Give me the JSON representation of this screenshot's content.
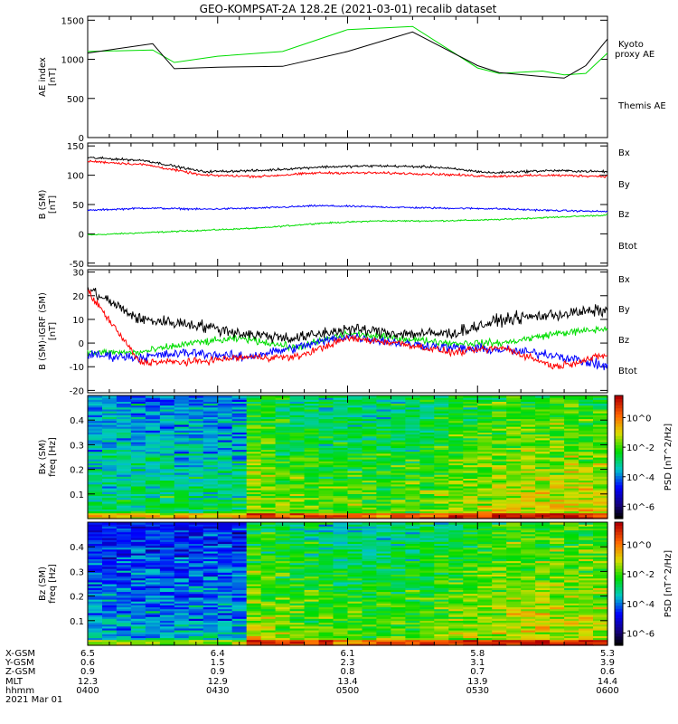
{
  "title": "GEO-KOMPSAT-2A 128.2E (2021-03-01) recalib dataset",
  "colors": {
    "kyoto": "#00dd00",
    "themis": "#000000",
    "bx": "#0000ff",
    "by": "#00dd00",
    "bz": "#ff0000",
    "btot": "#000000"
  },
  "chart_data": [
    {
      "type": "line",
      "panel": "ae",
      "ylabel": "AE index [nT]",
      "ylim": [
        0,
        1550
      ],
      "yticks": [
        0,
        500,
        1000,
        1500
      ],
      "x_minutes": [
        0,
        15,
        20,
        30,
        45,
        60,
        75,
        90,
        95,
        105,
        110,
        115,
        120
      ],
      "series": [
        {
          "name": "Kyoto proxy AE",
          "color": "#00dd00",
          "values": [
            1100,
            1120,
            960,
            1040,
            1100,
            1380,
            1420,
            890,
            820,
            850,
            800,
            820,
            1080
          ]
        },
        {
          "name": "Themis AE",
          "color": "#000000",
          "values": [
            1080,
            1200,
            880,
            900,
            910,
            1100,
            1350,
            920,
            830,
            780,
            760,
            920,
            1260
          ]
        }
      ],
      "legend": [
        "Kyoto",
        "proxy AE",
        "Themis AE"
      ]
    },
    {
      "type": "line",
      "panel": "b_sm",
      "ylabel": "B (SM) [nT]",
      "ylim": [
        -55,
        155
      ],
      "yticks": [
        -50,
        0,
        50,
        100,
        150
      ],
      "series": [
        {
          "name": "Bx",
          "color": "#0000ff",
          "values": [
            40,
            44,
            42,
            44,
            48,
            46,
            44,
            43,
            40,
            38
          ]
        },
        {
          "name": "By",
          "color": "#00dd00",
          "values": [
            -2,
            2,
            6,
            10,
            18,
            22,
            22,
            24,
            28,
            32
          ]
        },
        {
          "name": "Bz",
          "color": "#ff0000",
          "values": [
            124,
            118,
            100,
            98,
            104,
            104,
            102,
            98,
            100,
            98
          ]
        },
        {
          "name": "Btot",
          "color": "#000000",
          "values": [
            130,
            125,
            106,
            108,
            114,
            116,
            114,
            104,
            108,
            106
          ]
        }
      ]
    },
    {
      "type": "line",
      "panel": "b_igrf",
      "ylabel": "B (SM)-IGRF (SM) [nT]",
      "ylim": [
        -21,
        31
      ],
      "yticks": [
        -20,
        -10,
        0,
        10,
        20,
        30
      ],
      "series": [
        {
          "name": "Bx",
          "color": "#0000ff",
          "values": [
            -5,
            -6,
            -4,
            -6,
            -2,
            3,
            0,
            -2,
            -3,
            -5,
            -10
          ]
        },
        {
          "name": "By",
          "color": "#00dd00",
          "values": [
            -4,
            -4,
            0,
            2,
            -2,
            4,
            2,
            0,
            0,
            4,
            6
          ]
        },
        {
          "name": "Bz",
          "color": "#ff0000",
          "values": [
            22,
            -8,
            -8,
            -6,
            -6,
            2,
            0,
            -4,
            -2,
            -10,
            -5
          ]
        },
        {
          "name": "Btot",
          "color": "#000000",
          "values": [
            23,
            10,
            8,
            4,
            2,
            6,
            4,
            4,
            10,
            12,
            14
          ]
        }
      ]
    },
    {
      "type": "heatmap",
      "panel": "bx_psd",
      "ylabel": "Bx (SM) freq [Hz]",
      "ylim": [
        0,
        0.5
      ],
      "yticks": [
        0.1,
        0.2,
        0.3,
        0.4
      ],
      "colorbar": {
        "label": "PSD [nT^2/Hz]",
        "ticks": [
          "10^0",
          "10^-2",
          "10^-4",
          "10^-6"
        ]
      }
    },
    {
      "type": "heatmap",
      "panel": "bz_psd",
      "ylabel": "Bz (SM) freq [Hz]",
      "ylim": [
        0,
        0.5
      ],
      "yticks": [
        0.1,
        0.2,
        0.3,
        0.4
      ],
      "colorbar": {
        "label": "PSD [nT^2/Hz]",
        "ticks": [
          "10^0",
          "10^-2",
          "10^-4",
          "10^-6"
        ]
      }
    }
  ],
  "footer": {
    "row_labels": [
      "X-GSM",
      "Y-GSM",
      "Z-GSM",
      "MLT",
      "hhmm",
      "2021 Mar 01"
    ],
    "columns": [
      {
        "x": "6.5",
        "y": "0.6",
        "z": "0.9",
        "mlt": "12.3",
        "hhmm": "0400"
      },
      {
        "x": "6.4",
        "y": "1.5",
        "z": "0.9",
        "mlt": "12.9",
        "hhmm": "0430"
      },
      {
        "x": "6.1",
        "y": "2.3",
        "z": "0.8",
        "mlt": "13.4",
        "hhmm": "0500"
      },
      {
        "x": "5.8",
        "y": "3.1",
        "z": "0.7",
        "mlt": "13.9",
        "hhmm": "0530"
      },
      {
        "x": "5.3",
        "y": "3.9",
        "z": "0.6",
        "mlt": "14.4",
        "hhmm": "0600"
      }
    ]
  }
}
